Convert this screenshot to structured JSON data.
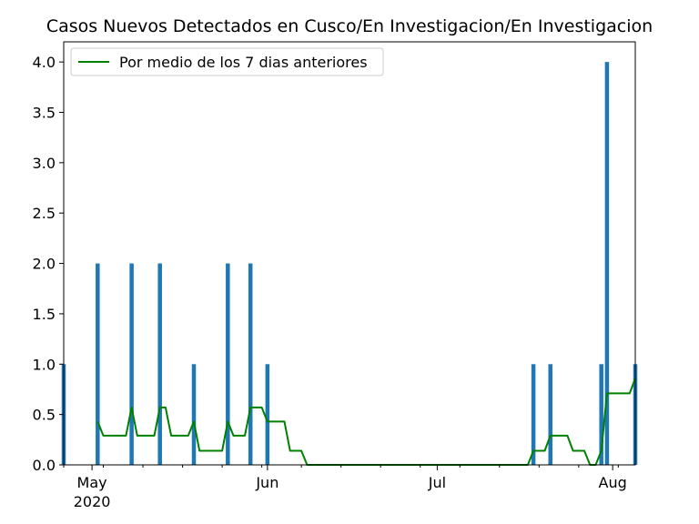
{
  "chart_data": {
    "type": "bar",
    "title": "Casos Nuevos Detectados en Cusco/En Investigacion/En Investigacion",
    "xlabel": "",
    "ylabel": "",
    "x_start": "2020-04-26",
    "x_end": "2020-08-05",
    "ylim": [
      0,
      4.2
    ],
    "yticks": [
      "0.0",
      "0.5",
      "1.0",
      "1.5",
      "2.0",
      "2.5",
      "3.0",
      "3.5",
      "4.0"
    ],
    "xticks": [
      {
        "date": "2020-05-01",
        "label": "May",
        "sublabel": "2020"
      },
      {
        "date": "2020-06-01",
        "label": "Jun",
        "sublabel": ""
      },
      {
        "date": "2020-07-01",
        "label": "Jul",
        "sublabel": ""
      },
      {
        "date": "2020-08-01",
        "label": "Aug",
        "sublabel": ""
      }
    ],
    "grid": false,
    "legend_position": "top-left",
    "legend": [
      {
        "label": "Por medio de los 7 dias anteriores",
        "color": "#008000"
      }
    ],
    "bar_color": "#1f77b4",
    "line_color": "#008000",
    "series": [
      {
        "type": "bar",
        "points": [
          {
            "date": "2020-04-26",
            "value": 1
          },
          {
            "date": "2020-05-02",
            "value": 2
          },
          {
            "date": "2020-05-08",
            "value": 2
          },
          {
            "date": "2020-05-13",
            "value": 2
          },
          {
            "date": "2020-05-19",
            "value": 1
          },
          {
            "date": "2020-05-25",
            "value": 2
          },
          {
            "date": "2020-05-29",
            "value": 2
          },
          {
            "date": "2020-06-01",
            "value": 1
          },
          {
            "date": "2020-07-18",
            "value": 1
          },
          {
            "date": "2020-07-21",
            "value": 1
          },
          {
            "date": "2020-07-30",
            "value": 1
          },
          {
            "date": "2020-07-31",
            "value": 4
          },
          {
            "date": "2020-08-05",
            "value": 1
          }
        ]
      },
      {
        "type": "line",
        "name": "Por medio de los 7 dias anteriores",
        "points": [
          {
            "date": "2020-05-02",
            "value": 0.43
          },
          {
            "date": "2020-05-03",
            "value": 0.29
          },
          {
            "date": "2020-05-07",
            "value": 0.29
          },
          {
            "date": "2020-05-08",
            "value": 0.57
          },
          {
            "date": "2020-05-09",
            "value": 0.29
          },
          {
            "date": "2020-05-12",
            "value": 0.29
          },
          {
            "date": "2020-05-13",
            "value": 0.57
          },
          {
            "date": "2020-05-14",
            "value": 0.57
          },
          {
            "date": "2020-05-15",
            "value": 0.29
          },
          {
            "date": "2020-05-18",
            "value": 0.29
          },
          {
            "date": "2020-05-19",
            "value": 0.43
          },
          {
            "date": "2020-05-20",
            "value": 0.14
          },
          {
            "date": "2020-05-24",
            "value": 0.14
          },
          {
            "date": "2020-05-25",
            "value": 0.43
          },
          {
            "date": "2020-05-26",
            "value": 0.29
          },
          {
            "date": "2020-05-28",
            "value": 0.29
          },
          {
            "date": "2020-05-29",
            "value": 0.57
          },
          {
            "date": "2020-05-31",
            "value": 0.57
          },
          {
            "date": "2020-06-01",
            "value": 0.43
          },
          {
            "date": "2020-06-04",
            "value": 0.43
          },
          {
            "date": "2020-06-05",
            "value": 0.14
          },
          {
            "date": "2020-06-07",
            "value": 0.14
          },
          {
            "date": "2020-06-08",
            "value": 0.0
          },
          {
            "date": "2020-07-17",
            "value": 0.0
          },
          {
            "date": "2020-07-18",
            "value": 0.14
          },
          {
            "date": "2020-07-20",
            "value": 0.14
          },
          {
            "date": "2020-07-21",
            "value": 0.29
          },
          {
            "date": "2020-07-24",
            "value": 0.29
          },
          {
            "date": "2020-07-25",
            "value": 0.14
          },
          {
            "date": "2020-07-27",
            "value": 0.14
          },
          {
            "date": "2020-07-28",
            "value": 0.0
          },
          {
            "date": "2020-07-29",
            "value": 0.0
          },
          {
            "date": "2020-07-30",
            "value": 0.14
          },
          {
            "date": "2020-07-31",
            "value": 0.71
          },
          {
            "date": "2020-08-04",
            "value": 0.71
          },
          {
            "date": "2020-08-05",
            "value": 0.86
          }
        ]
      }
    ]
  }
}
